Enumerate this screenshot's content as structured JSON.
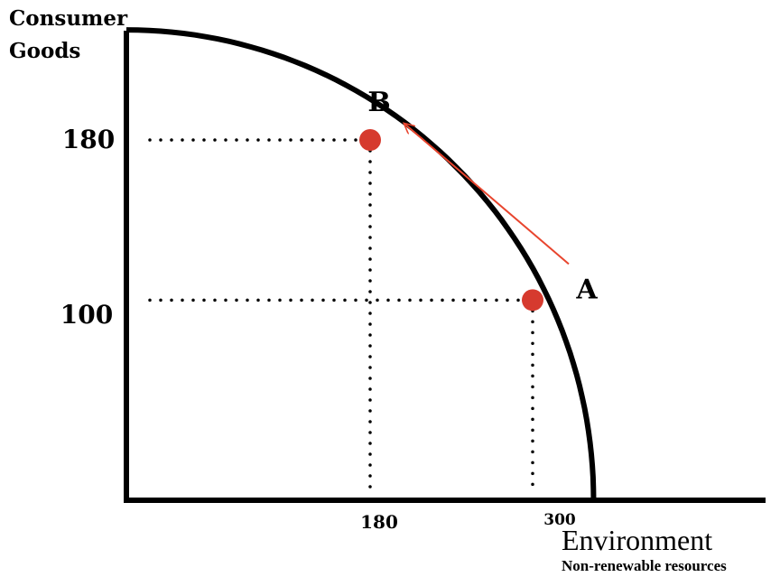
{
  "chart_data": {
    "type": "line",
    "title": "",
    "ylabel_line1": "Consumer",
    "ylabel_line2": "Goods",
    "xlabel": "Environment",
    "xlabel_sub": "Non-renewable resources",
    "x_ticks": [
      180,
      300
    ],
    "y_ticks": [
      180,
      100
    ],
    "curve_intercepts": {
      "x_max": 345,
      "y_max": 235
    },
    "points": [
      {
        "name": "B",
        "x": 180,
        "y": 180,
        "color": "#d63a2e"
      },
      {
        "name": "A",
        "x": 300,
        "y": 100,
        "color": "#d63a2e"
      }
    ],
    "arrow": {
      "from": "A",
      "to": "B",
      "color": "#e8452e"
    },
    "grid": false,
    "guide_lines": "dotted"
  }
}
